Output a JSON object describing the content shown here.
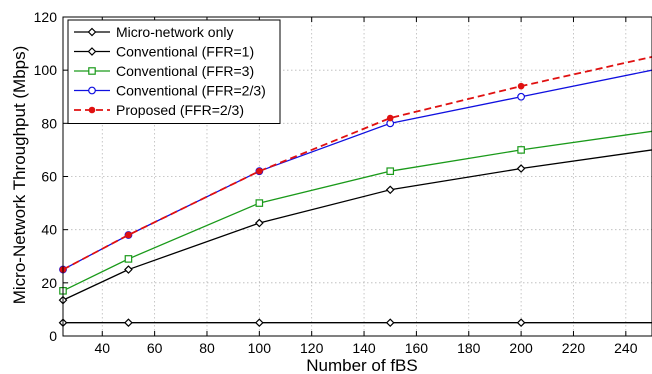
{
  "chart_data": {
    "type": "line",
    "title": "",
    "xlabel": "Number of fBS",
    "ylabel": "Micro-Network Throughput (Mbps)",
    "xlim": [
      25,
      250
    ],
    "ylim": [
      0,
      120
    ],
    "xticks": [
      40,
      60,
      80,
      100,
      120,
      140,
      160,
      180,
      200,
      220,
      240
    ],
    "yticks": [
      0,
      20,
      40,
      60,
      80,
      100,
      120
    ],
    "grid": true,
    "legend_position": "top-left",
    "series": [
      {
        "name": "Micro-network only",
        "color": "#000000",
        "marker": "diamond",
        "line_style": "solid",
        "x": [
          25,
          50,
          100,
          150,
          200,
          250
        ],
        "y": [
          5,
          5,
          5,
          5,
          5,
          5
        ],
        "marker_x": [
          25,
          50,
          100,
          150,
          200
        ]
      },
      {
        "name": "Conventional (FFR=1)",
        "color": "#000000",
        "marker": "diamond",
        "line_style": "solid",
        "x": [
          25,
          50,
          100,
          150,
          200,
          250
        ],
        "y": [
          13.5,
          25,
          42.5,
          55,
          63,
          70
        ],
        "marker_x": [
          25,
          50,
          100,
          150,
          200
        ]
      },
      {
        "name": "Conventional (FFR=3)",
        "color": "#1a9a1a",
        "marker": "square",
        "line_style": "solid",
        "x": [
          25,
          50,
          100,
          150,
          200,
          250
        ],
        "y": [
          17,
          29,
          50,
          62,
          70,
          77
        ],
        "marker_x": [
          25,
          50,
          100,
          150,
          200
        ]
      },
      {
        "name": "Conventional (FFR=2/3)",
        "color": "#1010e0",
        "marker": "circle",
        "line_style": "solid",
        "x": [
          25,
          50,
          100,
          150,
          200,
          250
        ],
        "y": [
          25,
          38,
          62,
          80,
          90,
          100
        ],
        "marker_x": [
          25,
          50,
          100,
          150,
          200
        ]
      },
      {
        "name": "Proposed (FFR=2/3)",
        "color": "#e01010",
        "marker": "dot",
        "line_style": "dashed",
        "x": [
          25,
          50,
          100,
          150,
          200,
          250
        ],
        "y": [
          25,
          38,
          62,
          82,
          94,
          105
        ],
        "marker_x": [
          25,
          50,
          100,
          150,
          200
        ]
      }
    ]
  }
}
